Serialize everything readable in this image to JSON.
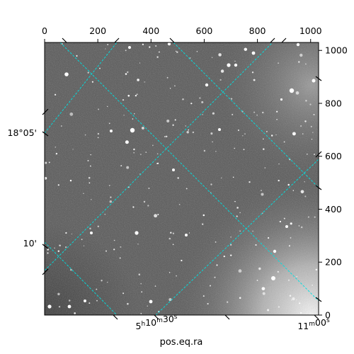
{
  "chart_data": {
    "type": "image",
    "title": "",
    "xlabel": "pos.eq.ra",
    "ylabel": "",
    "pixel_axes": {
      "x_ticks_top": [
        0,
        200,
        400,
        600,
        800,
        1000
      ],
      "y_ticks_right": [
        0,
        200,
        400,
        600,
        800,
        1000
      ],
      "xlim": [
        0,
        1030
      ],
      "ylim": [
        0,
        1030
      ]
    },
    "world_axes": {
      "ra_tick_labels": [
        {
          "text": "5h10m30s",
          "value": "5h10m30s"
        },
        {
          "text": "11m00s",
          "value": "5h11m00s"
        }
      ],
      "dec_tick_labels": [
        {
          "text": "18°05'",
          "value": "18°05'"
        },
        {
          "text": "10'",
          "value": "18°10'"
        }
      ]
    },
    "grid": true,
    "grid_color": "#00e0e0",
    "colormap": "gray"
  }
}
